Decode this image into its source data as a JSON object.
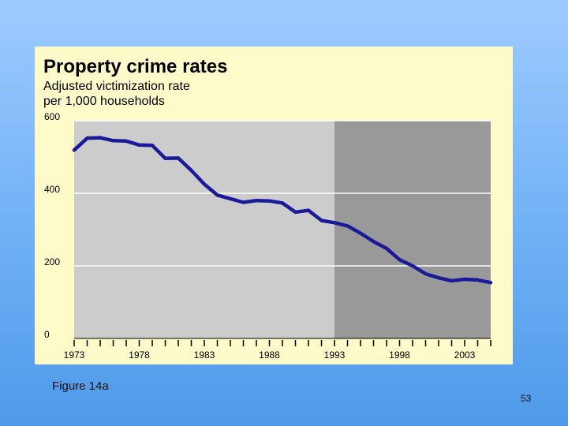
{
  "chart_data": {
    "type": "line",
    "title": "Property crime rates",
    "subtitle_lines": [
      "Adjusted victimization rate",
      "per 1,000 households"
    ],
    "xlabel": "",
    "ylabel": "",
    "xlim": [
      1973,
      2005
    ],
    "ylim": [
      0,
      600
    ],
    "y_ticks": [
      0,
      200,
      400,
      600
    ],
    "x_tick_labels": [
      1973,
      1978,
      1983,
      1988,
      1993,
      1998,
      2003
    ],
    "shaded_region_from": 1993,
    "series": [
      {
        "name": "Property crime rate",
        "x": [
          1973,
          1974,
          1975,
          1976,
          1977,
          1978,
          1979,
          1980,
          1981,
          1982,
          1983,
          1984,
          1985,
          1986,
          1987,
          1988,
          1989,
          1990,
          1991,
          1992,
          1993,
          1994,
          1995,
          1996,
          1997,
          1998,
          1999,
          2000,
          2001,
          2002,
          2003,
          2004,
          2005
        ],
        "values": [
          519,
          552,
          553,
          545,
          544,
          533,
          532,
          496,
          497,
          463,
          425,
          395,
          385,
          375,
          380,
          379,
          373,
          348,
          353,
          325,
          319,
          310,
          290,
          267,
          248,
          217,
          200,
          178,
          167,
          159,
          163,
          161,
          154
        ]
      }
    ]
  },
  "caption": "Figure 14a",
  "slide_number": "53",
  "colors": {
    "panel": "#fcfbc9",
    "plot_light": "#cccccc",
    "plot_dark": "#999999",
    "line": "#1a1a99",
    "gridline": "#ffffff"
  }
}
